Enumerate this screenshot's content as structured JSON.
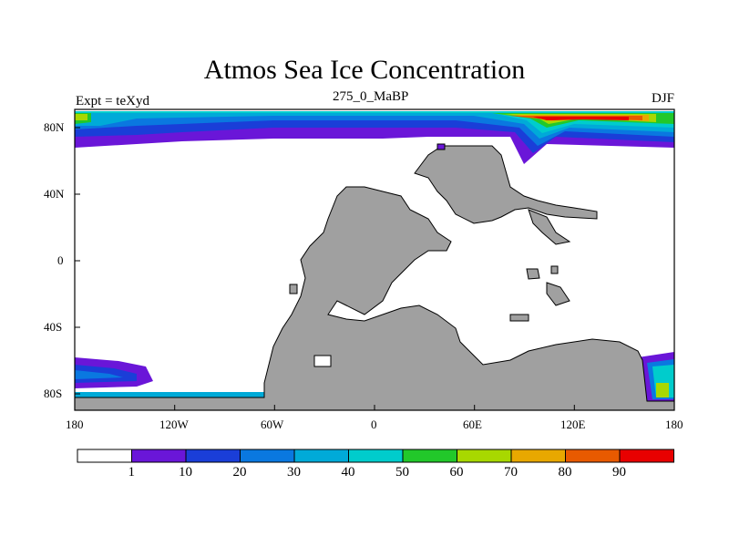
{
  "title": "Atmos Sea Ice Concentration",
  "left_subtitle": "Expt = teXyd",
  "center_subtitle": "275_0_MaBP",
  "right_subtitle": "DJF",
  "x_ticks": [
    "180",
    "120W",
    "60W",
    "0",
    "60E",
    "120E",
    "180"
  ],
  "y_ticks": [
    "80N",
    "40N",
    "0",
    "40S",
    "80S"
  ],
  "colorbar": {
    "labels": [
      "1",
      "10",
      "20",
      "30",
      "40",
      "50",
      "60",
      "70",
      "80",
      "90"
    ],
    "colors": [
      "#ffffff",
      "#6a16d8",
      "#1a3ed8",
      "#0a78e0",
      "#00aad8",
      "#00cccc",
      "#22c82a",
      "#a8d800",
      "#e8a800",
      "#e85a00",
      "#e80000"
    ]
  },
  "land_color": "#a0a0a0"
}
